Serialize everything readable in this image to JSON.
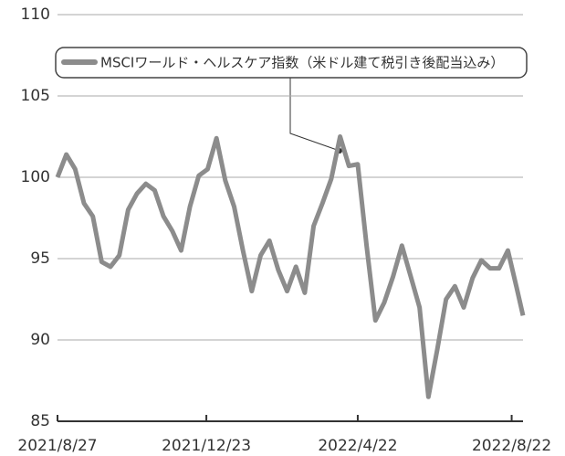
{
  "chart_data": {
    "type": "line",
    "x": [
      "2021/8/27",
      "2021/9/3",
      "2021/9/10",
      "2021/9/17",
      "2021/9/24",
      "2021/10/1",
      "2021/10/8",
      "2021/10/15",
      "2021/10/22",
      "2021/10/29",
      "2021/11/5",
      "2021/11/12",
      "2021/11/19",
      "2021/11/26",
      "2021/12/3",
      "2021/12/10",
      "2021/12/17",
      "2021/12/24",
      "2021/12/31",
      "2022/1/7",
      "2022/1/14",
      "2022/1/21",
      "2022/1/28",
      "2022/2/4",
      "2022/2/11",
      "2022/2/18",
      "2022/2/25",
      "2022/3/4",
      "2022/3/11",
      "2022/3/18",
      "2022/3/25",
      "2022/4/1",
      "2022/4/8",
      "2022/4/15",
      "2022/4/22",
      "2022/4/29",
      "2022/5/6",
      "2022/5/13",
      "2022/5/20",
      "2022/5/27",
      "2022/6/3",
      "2022/6/10",
      "2022/6/17",
      "2022/6/24",
      "2022/7/1",
      "2022/7/8",
      "2022/7/15",
      "2022/7/22",
      "2022/7/29",
      "2022/8/5",
      "2022/8/12",
      "2022/8/19",
      "2022/8/26",
      "2022/8/31"
    ],
    "series": [
      {
        "name": "MSCIワールド・ヘルスケア指数（米ドル建て税引き後配当込み）",
        "color": "#8c8c8c",
        "values": [
          100,
          101.4,
          100.5,
          98.4,
          97.6,
          94.8,
          94.5,
          95.2,
          98,
          99,
          99.6,
          99.2,
          97.6,
          96.7,
          95.5,
          98.2,
          100.1,
          100.5,
          102.4,
          99.8,
          98.2,
          95.5,
          93,
          95.2,
          96.1,
          94.3,
          93,
          94.5,
          92.9,
          97,
          98.4,
          99.9,
          102.5,
          100.7,
          100.8,
          95.8,
          91.2,
          92.3,
          93.9,
          95.8,
          93.9,
          92,
          86.5,
          89.4,
          92.5,
          93.3,
          92,
          93.8,
          94.9,
          94.4,
          94.4,
          95.5,
          93.2,
          91.5
        ]
      }
    ],
    "xlim": [
      "2021/8/27",
      "2022/8/31"
    ],
    "xticks": [
      "2021/8/27",
      "2021/12/23",
      "2022/4/22",
      "2022/8/22"
    ],
    "ylim": [
      85,
      110
    ],
    "yticks": [
      85,
      90,
      95,
      100,
      105,
      110
    ],
    "grid": true
  }
}
